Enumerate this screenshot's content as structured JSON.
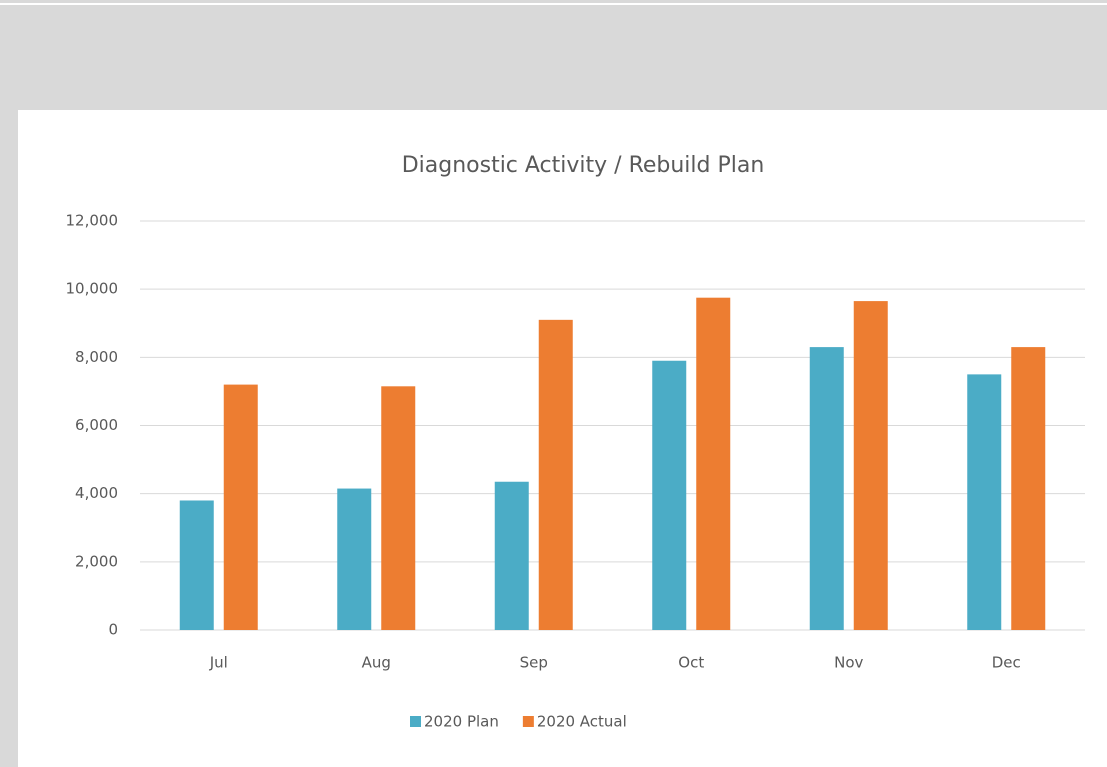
{
  "chart_data": {
    "type": "bar",
    "title": "Diagnostic Activity / Rebuild Plan",
    "categories": [
      "Jul",
      "Aug",
      "Sep",
      "Oct",
      "Nov",
      "Dec"
    ],
    "series": [
      {
        "name": "2020 Plan",
        "color": "#4bacc6",
        "values": [
          3800,
          4150,
          4350,
          7900,
          8300,
          7500
        ]
      },
      {
        "name": "2020 Actual",
        "color": "#ed7d31",
        "values": [
          7200,
          7150,
          9100,
          9750,
          9650,
          8300
        ]
      }
    ],
    "ylim": [
      0,
      12000
    ],
    "yticks": [
      0,
      {
        "value": 2000,
        "label": "2,000"
      },
      {
        "value": 4000,
        "label": "4,000"
      },
      {
        "value": 6000,
        "label": "6,000"
      },
      {
        "value": 8000,
        "label": "8,000"
      },
      {
        "value": 10000,
        "label": "10,000"
      },
      {
        "value": 12000,
        "label": "12,000"
      }
    ],
    "grid": true,
    "legend": "bottom"
  }
}
